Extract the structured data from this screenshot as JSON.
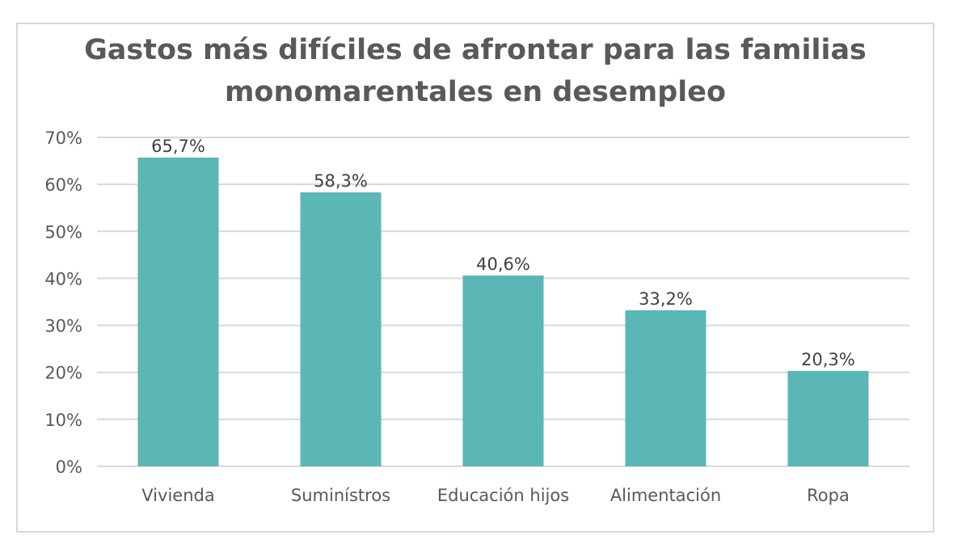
{
  "chart_data": {
    "type": "bar",
    "title": "Gastos más difíciles de afrontar para las familias monomarentales en desempleo",
    "categories": [
      "Vivienda",
      "Suminístros",
      "Educación hijos",
      "Alimentación",
      "Ropa"
    ],
    "values": [
      65.7,
      58.3,
      40.6,
      33.2,
      20.3
    ],
    "data_labels": [
      "65,7%",
      "58,3%",
      "40,6%",
      "33,2%",
      "20,3%"
    ],
    "yticks": [
      "0%",
      "10%",
      "20%",
      "30%",
      "40%",
      "50%",
      "60%",
      "70%"
    ],
    "ylim": [
      0,
      70
    ],
    "xlabel": "",
    "ylabel": "",
    "grid": true,
    "bar_color": "#5BB6B6"
  }
}
